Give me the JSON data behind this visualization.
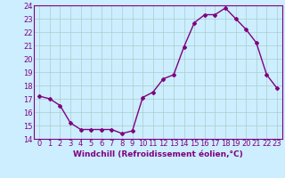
{
  "x": [
    0,
    1,
    2,
    3,
    4,
    5,
    6,
    7,
    8,
    9,
    10,
    11,
    12,
    13,
    14,
    15,
    16,
    17,
    18,
    19,
    20,
    21,
    22,
    23
  ],
  "y": [
    17.2,
    17.0,
    16.5,
    15.2,
    14.7,
    14.7,
    14.7,
    14.7,
    14.4,
    14.6,
    17.1,
    17.5,
    18.5,
    18.8,
    20.9,
    22.7,
    23.3,
    23.3,
    23.8,
    23.0,
    22.2,
    21.2,
    18.8,
    17.8
  ],
  "xlim": [
    -0.5,
    23.5
  ],
  "ylim": [
    14,
    24
  ],
  "yticks": [
    14,
    15,
    16,
    17,
    18,
    19,
    20,
    21,
    22,
    23,
    24
  ],
  "xticks": [
    0,
    1,
    2,
    3,
    4,
    5,
    6,
    7,
    8,
    9,
    10,
    11,
    12,
    13,
    14,
    15,
    16,
    17,
    18,
    19,
    20,
    21,
    22,
    23
  ],
  "line_color": "#800080",
  "marker": "D",
  "marker_size": 2.0,
  "bg_color": "#cceeff",
  "grid_color": "#aacccc",
  "xlabel": "Windchill (Refroidissement éolien,°C)",
  "xlabel_fontsize": 6.5,
  "tick_fontsize": 6.0,
  "line_width": 1.0
}
